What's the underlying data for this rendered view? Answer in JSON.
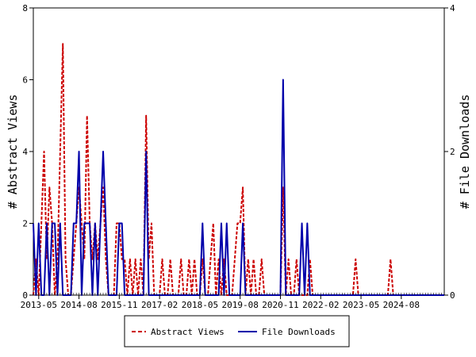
{
  "chart_data": {
    "type": "line",
    "title": "",
    "x_ticks": [
      "2013-05",
      "2014-08",
      "2015-11",
      "2017-02",
      "2018-05",
      "2019-08",
      "2020-11",
      "2022-02",
      "2023-05",
      "2024-08"
    ],
    "xlim": [
      "2013-03",
      "2025-12"
    ],
    "y_left": {
      "label": "# Abstract Views",
      "ticks": [
        0,
        2,
        4,
        6,
        8
      ],
      "ylim": [
        0,
        8
      ]
    },
    "y_right": {
      "label": "# File Downloads",
      "ticks": [
        0,
        2,
        4
      ],
      "ylim": [
        0,
        4
      ]
    },
    "legend_position": "bottom",
    "grid": false,
    "series": [
      {
        "name": "Abstract Views",
        "axis": "left",
        "color": "#cc0000",
        "style": "dashed",
        "points": [
          [
            "2013-03",
            0
          ],
          [
            "2013-04",
            1
          ],
          [
            "2013-05",
            0
          ],
          [
            "2013-06",
            2
          ],
          [
            "2013-07",
            4
          ],
          [
            "2013-08",
            1
          ],
          [
            "2013-09",
            3
          ],
          [
            "2013-10",
            2
          ],
          [
            "2013-11",
            0
          ],
          [
            "2013-12",
            1
          ],
          [
            "2014-01",
            4
          ],
          [
            "2014-02",
            7
          ],
          [
            "2014-03",
            1
          ],
          [
            "2014-04",
            0
          ],
          [
            "2014-05",
            0
          ],
          [
            "2014-06",
            1
          ],
          [
            "2014-07",
            2
          ],
          [
            "2014-08",
            3
          ],
          [
            "2014-09",
            2
          ],
          [
            "2014-10",
            1
          ],
          [
            "2014-11",
            5
          ],
          [
            "2014-12",
            2
          ],
          [
            "2015-01",
            1
          ],
          [
            "2015-02",
            2
          ],
          [
            "2015-03",
            1
          ],
          [
            "2015-04",
            2
          ],
          [
            "2015-05",
            3
          ],
          [
            "2015-06",
            1
          ],
          [
            "2015-07",
            0
          ],
          [
            "2015-08",
            0
          ],
          [
            "2015-09",
            0
          ],
          [
            "2015-10",
            2
          ],
          [
            "2015-11",
            2
          ],
          [
            "2015-12",
            1
          ],
          [
            "2016-01",
            1
          ],
          [
            "2016-02",
            0
          ],
          [
            "2016-03",
            1
          ],
          [
            "2016-04",
            0
          ],
          [
            "2016-05",
            1
          ],
          [
            "2016-06",
            0
          ],
          [
            "2016-07",
            1
          ],
          [
            "2016-08",
            0
          ],
          [
            "2016-09",
            5
          ],
          [
            "2016-10",
            1
          ],
          [
            "2016-11",
            2
          ],
          [
            "2016-12",
            0
          ],
          [
            "2017-01",
            0
          ],
          [
            "2017-02",
            0
          ],
          [
            "2017-03",
            1
          ],
          [
            "2017-04",
            0
          ],
          [
            "2017-05",
            0
          ],
          [
            "2017-06",
            1
          ],
          [
            "2017-07",
            0
          ],
          [
            "2017-08",
            0
          ],
          [
            "2017-09",
            0
          ],
          [
            "2017-10",
            1
          ],
          [
            "2017-11",
            0
          ],
          [
            "2017-12",
            0
          ],
          [
            "2018-01",
            1
          ],
          [
            "2018-02",
            0
          ],
          [
            "2018-03",
            1
          ],
          [
            "2018-04",
            0
          ],
          [
            "2018-05",
            0
          ],
          [
            "2018-06",
            1
          ],
          [
            "2018-07",
            0
          ],
          [
            "2018-08",
            0
          ],
          [
            "2018-09",
            1
          ],
          [
            "2018-10",
            2
          ],
          [
            "2018-11",
            0
          ],
          [
            "2018-12",
            1
          ],
          [
            "2019-01",
            0
          ],
          [
            "2019-02",
            1
          ],
          [
            "2019-03",
            0
          ],
          [
            "2019-04",
            0
          ],
          [
            "2019-05",
            0
          ],
          [
            "2019-06",
            1
          ],
          [
            "2019-07",
            2
          ],
          [
            "2019-08",
            2
          ],
          [
            "2019-09",
            3
          ],
          [
            "2019-10",
            0
          ],
          [
            "2019-11",
            1
          ],
          [
            "2019-12",
            0
          ],
          [
            "2020-01",
            1
          ],
          [
            "2020-02",
            0
          ],
          [
            "2020-03",
            0
          ],
          [
            "2020-04",
            1
          ],
          [
            "2020-05",
            0
          ],
          [
            "2020-06",
            0
          ],
          [
            "2020-07",
            0
          ],
          [
            "2020-08",
            0
          ],
          [
            "2020-09",
            0
          ],
          [
            "2020-10",
            0
          ],
          [
            "2020-11",
            0
          ],
          [
            "2020-12",
            3
          ],
          [
            "2021-01",
            0
          ],
          [
            "2021-02",
            1
          ],
          [
            "2021-03",
            0
          ],
          [
            "2021-04",
            0
          ],
          [
            "2021-05",
            1
          ],
          [
            "2021-06",
            0
          ],
          [
            "2021-07",
            0
          ],
          [
            "2021-08",
            0
          ],
          [
            "2021-09",
            0
          ],
          [
            "2021-10",
            1
          ],
          [
            "2021-11",
            0
          ],
          [
            "2021-12",
            0
          ],
          [
            "2022-01",
            0
          ],
          [
            "2022-02",
            0
          ],
          [
            "2022-03",
            0
          ],
          [
            "2022-04",
            0
          ],
          [
            "2022-05",
            0
          ],
          [
            "2022-06",
            0
          ],
          [
            "2022-07",
            0
          ],
          [
            "2022-08",
            0
          ],
          [
            "2022-09",
            0
          ],
          [
            "2022-10",
            0
          ],
          [
            "2022-11",
            0
          ],
          [
            "2022-12",
            0
          ],
          [
            "2023-01",
            0
          ],
          [
            "2023-02",
            0
          ],
          [
            "2023-03",
            1
          ],
          [
            "2023-04",
            0
          ],
          [
            "2023-05",
            0
          ],
          [
            "2023-06",
            0
          ],
          [
            "2023-07",
            0
          ],
          [
            "2023-08",
            0
          ],
          [
            "2023-09",
            0
          ],
          [
            "2023-10",
            0
          ],
          [
            "2023-11",
            0
          ],
          [
            "2023-12",
            0
          ],
          [
            "2024-01",
            0
          ],
          [
            "2024-02",
            0
          ],
          [
            "2024-03",
            0
          ],
          [
            "2024-04",
            1
          ],
          [
            "2024-05",
            0
          ],
          [
            "2025-12",
            0
          ]
        ]
      },
      {
        "name": "File Downloads",
        "axis": "right",
        "color": "#0000aa",
        "style": "solid",
        "points": [
          [
            "2013-03",
            1
          ],
          [
            "2013-04",
            0
          ],
          [
            "2013-05",
            1
          ],
          [
            "2013-06",
            0
          ],
          [
            "2013-07",
            0
          ],
          [
            "2013-08",
            1
          ],
          [
            "2013-09",
            0
          ],
          [
            "2013-10",
            1
          ],
          [
            "2013-11",
            1
          ],
          [
            "2013-12",
            0
          ],
          [
            "2014-01",
            1
          ],
          [
            "2014-02",
            0
          ],
          [
            "2014-03",
            0
          ],
          [
            "2014-04",
            0
          ],
          [
            "2014-05",
            0
          ],
          [
            "2014-06",
            1
          ],
          [
            "2014-07",
            1
          ],
          [
            "2014-08",
            2
          ],
          [
            "2014-09",
            0
          ],
          [
            "2014-10",
            1
          ],
          [
            "2014-11",
            1
          ],
          [
            "2014-12",
            1
          ],
          [
            "2015-01",
            0
          ],
          [
            "2015-02",
            1
          ],
          [
            "2015-03",
            0
          ],
          [
            "2015-04",
            1
          ],
          [
            "2015-05",
            2
          ],
          [
            "2015-06",
            1
          ],
          [
            "2015-07",
            0
          ],
          [
            "2015-08",
            0
          ],
          [
            "2015-09",
            0
          ],
          [
            "2015-10",
            0
          ],
          [
            "2015-11",
            1
          ],
          [
            "2015-12",
            1
          ],
          [
            "2016-01",
            0
          ],
          [
            "2016-02",
            0
          ],
          [
            "2016-03",
            0
          ],
          [
            "2016-04",
            0
          ],
          [
            "2016-05",
            0
          ],
          [
            "2016-06",
            0
          ],
          [
            "2016-07",
            0
          ],
          [
            "2016-08",
            0
          ],
          [
            "2016-09",
            2
          ],
          [
            "2016-10",
            0
          ],
          [
            "2016-11",
            0
          ],
          [
            "2016-12",
            0
          ],
          [
            "2017-01",
            0
          ],
          [
            "2017-02",
            0
          ],
          [
            "2017-03",
            0
          ],
          [
            "2017-04",
            0
          ],
          [
            "2017-05",
            0
          ],
          [
            "2017-06",
            0
          ],
          [
            "2017-07",
            0
          ],
          [
            "2017-08",
            0
          ],
          [
            "2017-09",
            0
          ],
          [
            "2017-10",
            0
          ],
          [
            "2017-11",
            0
          ],
          [
            "2017-12",
            0
          ],
          [
            "2018-01",
            0
          ],
          [
            "2018-02",
            0
          ],
          [
            "2018-03",
            0
          ],
          [
            "2018-04",
            0
          ],
          [
            "2018-05",
            0
          ],
          [
            "2018-06",
            1
          ],
          [
            "2018-07",
            0
          ],
          [
            "2018-08",
            0
          ],
          [
            "2018-09",
            0
          ],
          [
            "2018-10",
            0
          ],
          [
            "2018-11",
            0
          ],
          [
            "2018-12",
            0
          ],
          [
            "2019-01",
            1
          ],
          [
            "2019-02",
            0
          ],
          [
            "2019-03",
            1
          ],
          [
            "2019-04",
            0
          ],
          [
            "2019-05",
            0
          ],
          [
            "2019-06",
            0
          ],
          [
            "2019-07",
            0
          ],
          [
            "2019-08",
            0
          ],
          [
            "2019-09",
            1
          ],
          [
            "2019-10",
            0
          ],
          [
            "2019-11",
            0
          ],
          [
            "2019-12",
            0
          ],
          [
            "2020-01",
            0
          ],
          [
            "2020-02",
            0
          ],
          [
            "2020-03",
            0
          ],
          [
            "2020-04",
            0
          ],
          [
            "2020-05",
            0
          ],
          [
            "2020-06",
            0
          ],
          [
            "2020-07",
            0
          ],
          [
            "2020-08",
            0
          ],
          [
            "2020-09",
            0
          ],
          [
            "2020-10",
            0
          ],
          [
            "2020-11",
            0
          ],
          [
            "2020-12",
            3
          ],
          [
            "2021-01",
            0
          ],
          [
            "2021-02",
            0
          ],
          [
            "2021-03",
            0
          ],
          [
            "2021-04",
            0
          ],
          [
            "2021-05",
            0
          ],
          [
            "2021-06",
            0
          ],
          [
            "2021-07",
            1
          ],
          [
            "2021-08",
            0
          ],
          [
            "2021-09",
            1
          ],
          [
            "2021-10",
            0
          ],
          [
            "2021-11",
            0
          ],
          [
            "2021-12",
            0
          ],
          [
            "2025-12",
            0
          ]
        ]
      }
    ]
  }
}
